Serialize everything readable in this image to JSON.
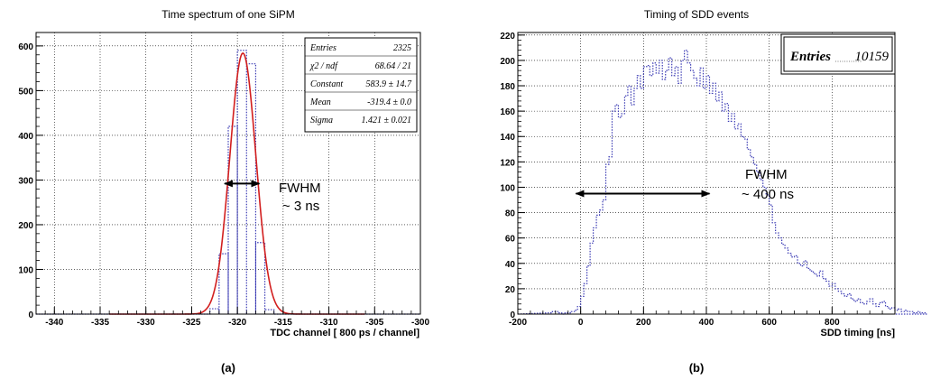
{
  "chart_data": [
    {
      "type": "histogram",
      "title": "Time spectrum of one SiPM",
      "xlabel": "TDC channel [ 800 ps / channel]",
      "ylabel": "",
      "xlim": [
        -342,
        -300
      ],
      "ylim": [
        0,
        630
      ],
      "xticks": [
        "-340",
        "-335",
        "-330",
        "-325",
        "-320",
        "-315",
        "-310",
        "-305",
        "-300"
      ],
      "yticks": [
        "0",
        "100",
        "200",
        "300",
        "400",
        "500",
        "600"
      ],
      "grid": true,
      "bins": [
        {
          "x0": -323,
          "x1": -322,
          "y": 12
        },
        {
          "x0": -322,
          "x1": -321,
          "y": 135
        },
        {
          "x0": -321,
          "x1": -320,
          "y": 420
        },
        {
          "x0": -320,
          "x1": -319,
          "y": 590
        },
        {
          "x0": -319,
          "x1": -318,
          "y": 560
        },
        {
          "x0": -318,
          "x1": -317,
          "y": 160
        },
        {
          "x0": -317,
          "x1": -316,
          "y": 10
        }
      ],
      "fit": {
        "type": "gaussian",
        "constant": 583.9,
        "mean": -319.4,
        "sigma": 1.421,
        "color": "#d21e1e"
      },
      "stats_box": [
        {
          "label": "Entries",
          "value": "2325"
        },
        {
          "label": "χ2 / ndf",
          "value": "68.64 / 21"
        },
        {
          "label": "Constant",
          "value": "583.9 ±  14.7"
        },
        {
          "label": "Mean",
          "value": "-319.4 ± 0.0"
        },
        {
          "label": "Sigma",
          "value": "1.421 ± 0.021"
        }
      ],
      "annotation": {
        "line1": "FWHM",
        "line2": "~ 3 ns",
        "arrow_x": [
          -321.4,
          -317.6
        ],
        "arrow_y": 292
      },
      "panel_label": "(a)"
    },
    {
      "type": "histogram",
      "title": "Timing of SDD events",
      "xlabel": "SDD timing [ns]",
      "ylabel": "",
      "xlim": [
        -200,
        1000
      ],
      "ylim": [
        0,
        222
      ],
      "xticks": [
        "-200",
        "0",
        "200",
        "400",
        "600",
        "800"
      ],
      "yticks": [
        "0",
        "20",
        "40",
        "60",
        "80",
        "100",
        "120",
        "140",
        "160",
        "180",
        "200",
        "220"
      ],
      "grid": true,
      "bin_width": 10,
      "bin_start": -100,
      "values": [
        1,
        2,
        2,
        1,
        0,
        1,
        1,
        2,
        3,
        6,
        14,
        24,
        38,
        56,
        68,
        78,
        82,
        90,
        118,
        124,
        160,
        165,
        155,
        158,
        172,
        180,
        165,
        178,
        188,
        178,
        195,
        196,
        188,
        198,
        190,
        200,
        185,
        192,
        202,
        188,
        195,
        182,
        200,
        208,
        198,
        192,
        186,
        180,
        194,
        178,
        188,
        174,
        182,
        168,
        175,
        160,
        166,
        152,
        158,
        146,
        150,
        140,
        138,
        130,
        124,
        118,
        112,
        106,
        100,
        94,
        86,
        72,
        64,
        60,
        55,
        52,
        48,
        45,
        46,
        40,
        38,
        42,
        36,
        34,
        32,
        30,
        34,
        28,
        26,
        22,
        24,
        20,
        18,
        16,
        14,
        16,
        12,
        10,
        12,
        9,
        8,
        10,
        12,
        8,
        6,
        9,
        10,
        6,
        4,
        5,
        3,
        4,
        2,
        3,
        2,
        2,
        1,
        2,
        1,
        1
      ],
      "stats_box": [
        {
          "label": "Entries",
          "value": "10159"
        }
      ],
      "annotation": {
        "line1": "FWHM",
        "line2": "~ 400 ns",
        "arrow_x": [
          -15,
          410
        ],
        "arrow_y": 95
      },
      "panel_label": "(b)"
    }
  ]
}
